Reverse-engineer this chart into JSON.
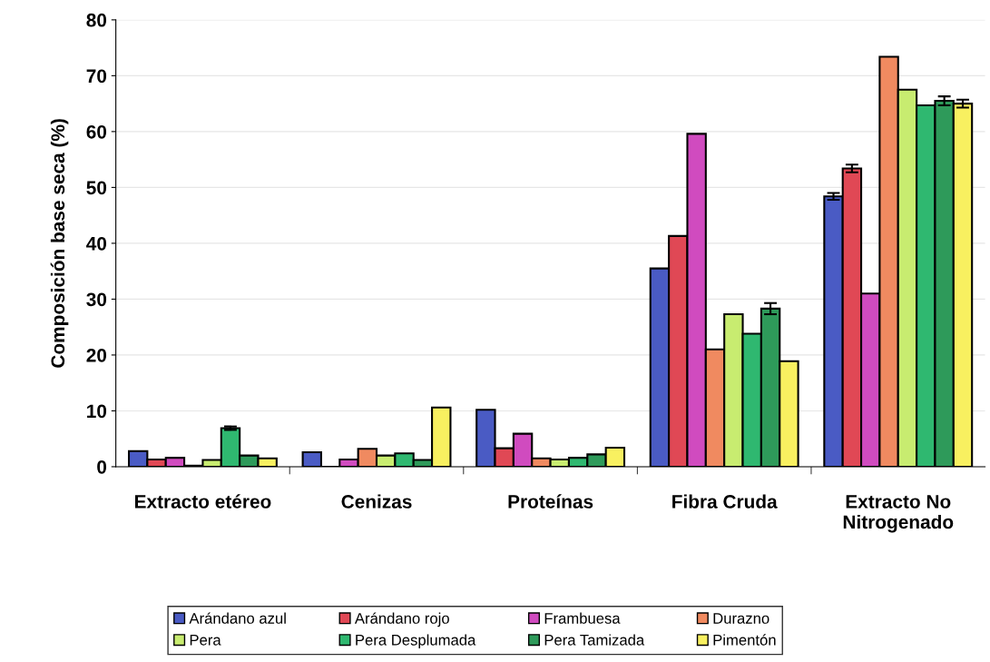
{
  "chart_data": {
    "type": "bar",
    "ylabel": "Composición base seca (%)",
    "categories": [
      "Extracto etéreo",
      "Cenizas",
      "Proteínas",
      "Fibra Cruda",
      "Extracto No\nNitrogenado"
    ],
    "series": [
      {
        "name": "Arándano azul",
        "color": "#4a5bc4",
        "values": [
          2.8,
          2.6,
          10.2,
          35.5,
          48.4
        ],
        "errors": [
          null,
          null,
          null,
          null,
          0.6
        ]
      },
      {
        "name": "Arándano rojo",
        "color": "#e04855",
        "values": [
          1.3,
          null,
          3.3,
          41.3,
          53.4
        ],
        "errors": [
          null,
          null,
          null,
          null,
          0.7
        ]
      },
      {
        "name": "Frambuesa",
        "color": "#d04bbf",
        "values": [
          1.6,
          1.3,
          5.9,
          59.6,
          31.0
        ]
      },
      {
        "name": "Durazno",
        "color": "#f08a60",
        "values": [
          0.2,
          3.2,
          1.5,
          21.0,
          73.4
        ]
      },
      {
        "name": "Pera",
        "color": "#c8ec70",
        "values": [
          1.2,
          2.0,
          1.3,
          27.3,
          67.5
        ]
      },
      {
        "name": "Pera Desplumada",
        "color": "#2fb870",
        "values": [
          6.9,
          2.4,
          1.6,
          23.8,
          64.7
        ],
        "errors": [
          0.3,
          null,
          null,
          null,
          null
        ]
      },
      {
        "name": "Pera Tamizada",
        "color": "#2e9a5a",
        "values": [
          2.0,
          1.2,
          2.2,
          28.3,
          65.5
        ],
        "errors": [
          null,
          null,
          null,
          1.0,
          0.8
        ]
      },
      {
        "name": "Pimentón",
        "color": "#f8f060",
        "values": [
          1.5,
          10.6,
          3.4,
          18.9,
          65.0
        ],
        "errors": [
          null,
          null,
          null,
          null,
          0.7
        ]
      }
    ],
    "ylim": [
      0,
      80
    ],
    "yticks": [
      0,
      10,
      20,
      30,
      40,
      50,
      60,
      70,
      80
    ],
    "grid": "y",
    "legend": "bottom"
  }
}
